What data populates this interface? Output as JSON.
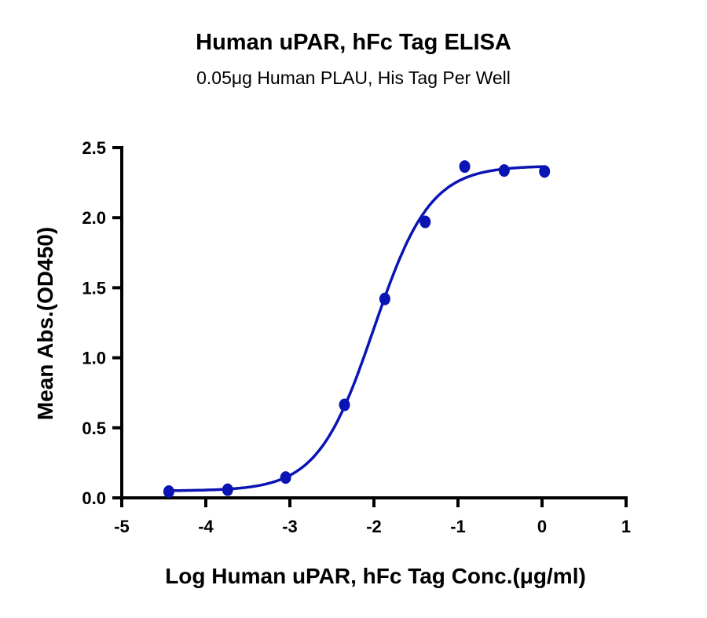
{
  "chart_data": {
    "type": "scatter",
    "title": "Human uPAR, hFc Tag ELISA",
    "subtitle": "0.05μg Human PLAU, His Tag Per Well",
    "xlabel": "Log Human uPAR, hFc Tag Conc.(μg/ml)",
    "ylabel": "Mean Abs.(OD450)",
    "xlim": [
      -5,
      1
    ],
    "ylim": [
      0,
      2.5
    ],
    "xticks": [
      "-5",
      "-4",
      "-3",
      "-2",
      "-1",
      "0",
      "1"
    ],
    "yticks": [
      "0.0",
      "0.5",
      "1.0",
      "1.5",
      "2.0",
      "2.5"
    ],
    "grid": false,
    "color": "#0a14b4",
    "x": [
      -4.44,
      -3.74,
      -3.05,
      -2.35,
      -1.87,
      -1.39,
      -0.92,
      -0.45,
      0.03
    ],
    "y": [
      0.045,
      0.058,
      0.145,
      0.664,
      1.42,
      1.97,
      2.365,
      2.337,
      2.33
    ],
    "fit": {
      "model": "4PL",
      "bottom": 0.05,
      "top": 2.37,
      "logEC50": -2.0,
      "hill": 1.3,
      "range": [
        -4.44,
        0.03
      ]
    }
  }
}
